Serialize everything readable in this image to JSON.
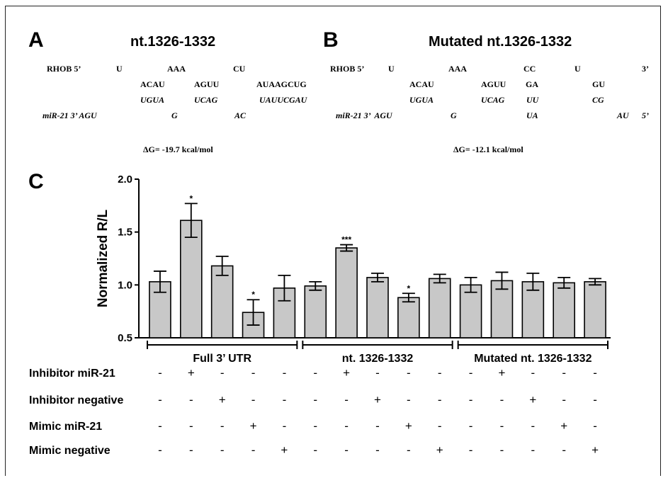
{
  "panel_a": {
    "letter": "A",
    "title": "nt.1326-1332",
    "rows": [
      {
        "y": 0,
        "italic": false,
        "cells": [
          [
            "RHOB 5’",
            0
          ],
          [
            "U",
            98
          ],
          [
            "AAA",
            170
          ],
          [
            "CU",
            263
          ]
        ]
      },
      {
        "y": 1,
        "italic": false,
        "cells": [
          [
            "ACAU",
            132
          ],
          [
            "AGUU",
            208
          ],
          [
            "AUAAGCUG",
            296
          ]
        ]
      },
      {
        "y": 2,
        "italic": true,
        "cells": [
          [
            "UGUA",
            132
          ],
          [
            "UCAG",
            208
          ],
          [
            "UAUUCGAU",
            300
          ]
        ]
      },
      {
        "y": 3,
        "italic": true,
        "cells": [
          [
            "miR-21 3’ AGU",
            -6
          ],
          [
            "G",
            176
          ],
          [
            "AC",
            265
          ]
        ]
      }
    ],
    "delta_g": "ΔG= -19.7 kcal/mol"
  },
  "panel_b": {
    "letter": "B",
    "title": "Mutated nt.1326-1332",
    "rows": [
      {
        "y": 0,
        "italic": false,
        "cells": [
          [
            "RHOB 5’",
            0
          ],
          [
            "U",
            82
          ],
          [
            "AAA",
            167
          ],
          [
            "CC",
            273
          ],
          [
            "U",
            345
          ],
          [
            "3’",
            440
          ]
        ]
      },
      {
        "y": 1,
        "italic": false,
        "cells": [
          [
            "ACAU",
            112
          ],
          [
            "AGUU",
            213
          ],
          [
            "GA",
            276
          ],
          [
            "GU",
            370
          ]
        ]
      },
      {
        "y": 2,
        "italic": true,
        "cells": [
          [
            "UGUA",
            112
          ],
          [
            "UCAG",
            213
          ],
          [
            "UU",
            277
          ],
          [
            "CG",
            370
          ]
        ]
      },
      {
        "y": 3,
        "italic": true,
        "cells": [
          [
            "miR-21 3’  AGU",
            8
          ],
          [
            "G",
            170
          ],
          [
            "UA",
            277
          ],
          [
            "AU",
            405
          ],
          [
            "5’",
            440
          ]
        ]
      }
    ],
    "delta_g": "ΔG= -12.1 kcal/mol"
  },
  "panel_c": {
    "letter": "C"
  },
  "chart_data": {
    "type": "bar",
    "ylabel": "Normalized R/L",
    "ylim": [
      0.5,
      2.0
    ],
    "yticks": [
      0.5,
      1.0,
      1.5,
      2.0
    ],
    "ytick_labels": [
      "0.5",
      "1.0",
      "1.5",
      "2.0"
    ],
    "values": [
      1.03,
      1.61,
      1.18,
      0.74,
      0.97,
      0.99,
      1.35,
      1.07,
      0.88,
      1.06,
      1.0,
      1.04,
      1.03,
      1.02,
      1.03
    ],
    "errors": [
      0.1,
      0.16,
      0.09,
      0.12,
      0.12,
      0.04,
      0.03,
      0.04,
      0.04,
      0.04,
      0.07,
      0.08,
      0.08,
      0.05,
      0.03
    ],
    "significance": [
      "",
      "*",
      "",
      "*",
      "",
      "",
      "***",
      "",
      "*",
      "",
      "",
      "",
      "",
      "",
      ""
    ],
    "bar_color": "#c8c8c8",
    "groups": [
      {
        "label": "Full 3’ UTR",
        "start": 0,
        "end": 4
      },
      {
        "label": "nt. 1326-1332",
        "start": 5,
        "end": 9
      },
      {
        "label": "Mutated nt. 1326-1332",
        "start": 10,
        "end": 14
      }
    ],
    "conditions": [
      {
        "label": "Inhibitor miR-21",
        "marks": [
          "-",
          "+",
          "-",
          "-",
          "-",
          "-",
          "+",
          "-",
          "-",
          "-",
          "-",
          "+",
          "-",
          "-",
          "-"
        ]
      },
      {
        "label": "Inhibitor negative",
        "marks": [
          "-",
          "-",
          "+",
          "-",
          "-",
          "-",
          "-",
          "+",
          "-",
          "-",
          "-",
          "-",
          "+",
          "-",
          "-"
        ]
      },
      {
        "label": "Mimic miR-21",
        "marks": [
          "-",
          "-",
          "-",
          "+",
          "-",
          "-",
          "-",
          "-",
          "+",
          "-",
          "-",
          "-",
          "-",
          "+",
          "-"
        ]
      },
      {
        "label": "Mimic negative",
        "marks": [
          "-",
          "-",
          "-",
          "-",
          "+",
          "-",
          "-",
          "-",
          "-",
          "+",
          "-",
          "-",
          "-",
          "-",
          "+"
        ]
      }
    ]
  }
}
